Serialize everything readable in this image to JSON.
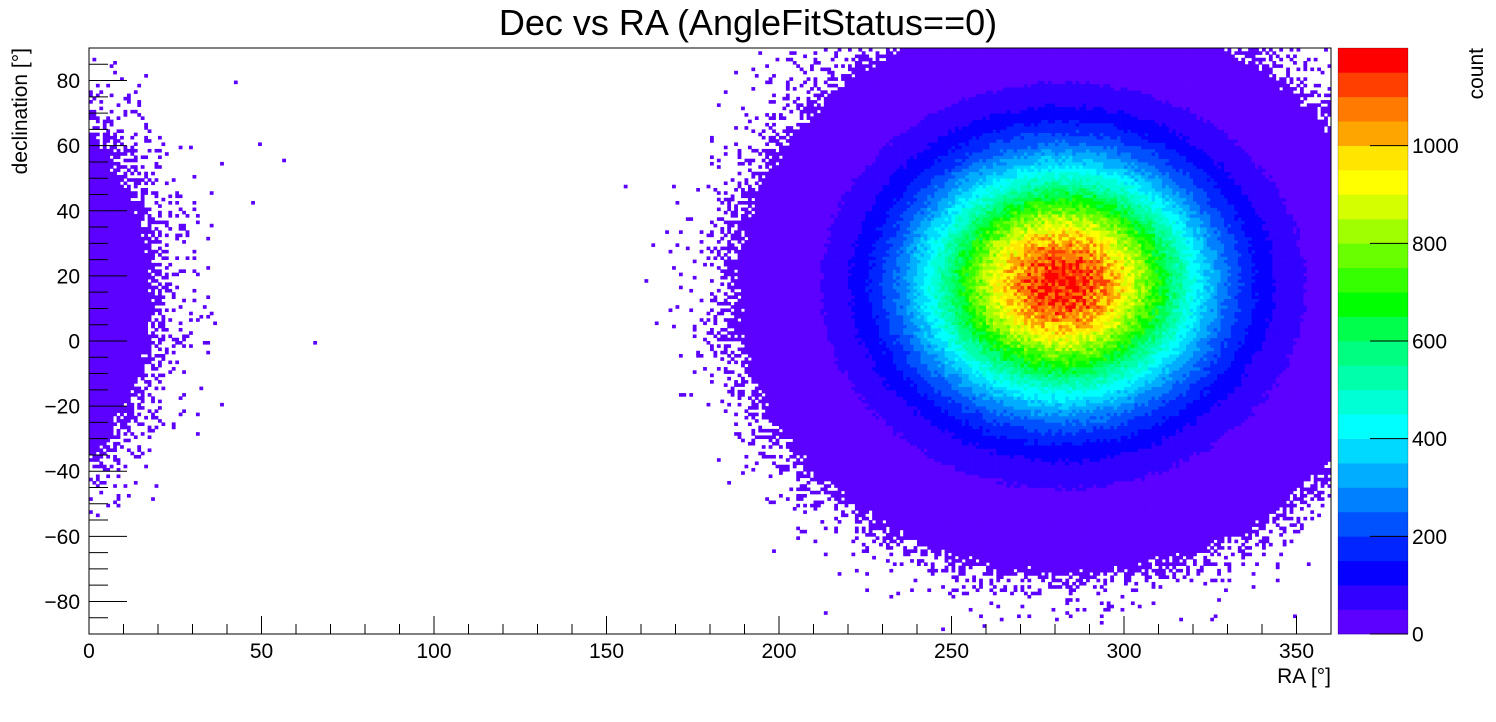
{
  "chart_data": {
    "type": "heatmap",
    "title": "Dec vs RA (AngleFitStatus==0)",
    "xlabel": "RA [°]",
    "ylabel": "declination [°]",
    "zlabel": "count",
    "xlim": [
      0,
      360
    ],
    "ylim": [
      -90,
      90
    ],
    "zlim": [
      0,
      1200
    ],
    "x_ticks": [
      0,
      50,
      100,
      150,
      200,
      250,
      300,
      350
    ],
    "x_tick_labels": [
      "0",
      "50",
      "100",
      "150",
      "200",
      "250",
      "300",
      "350"
    ],
    "y_ticks": [
      80,
      60,
      40,
      20,
      0,
      -20,
      -40,
      -60,
      -80
    ],
    "y_tick_labels": [
      "80",
      "60",
      "40",
      "20",
      "0",
      "−20",
      "−40",
      "−60",
      "−80"
    ],
    "z_ticks": [
      0,
      200,
      400,
      600,
      800,
      1000
    ],
    "z_tick_labels": [
      "0",
      "200",
      "400",
      "600",
      "800",
      "1000"
    ],
    "bins": {
      "nx": 360,
      "ny": 180
    },
    "distribution": {
      "peak_count": 1150,
      "peak_ra": 282,
      "peak_dec": 18,
      "core_sigma_ra": 27,
      "core_sigma_dec": 24,
      "halo_level": 18,
      "halo_center_ra": 285,
      "halo_center_dec": 10,
      "halo_radius_ra": 80,
      "halo_radius_dec": 72
    },
    "palette": [
      "#5c00ff",
      "#3100ff",
      "#0600ff",
      "#0025ff",
      "#0051ff",
      "#0080ff",
      "#00adff",
      "#00d9ff",
      "#00ffff",
      "#00ffd4",
      "#00ffaa",
      "#00ff80",
      "#00ff4c",
      "#00ff00",
      "#35ff00",
      "#6aff00",
      "#a0ff00",
      "#d4ff00",
      "#ffff00",
      "#ffe500",
      "#ffa500",
      "#ff7a00",
      "#ff3f00",
      "#ff0000"
    ]
  }
}
